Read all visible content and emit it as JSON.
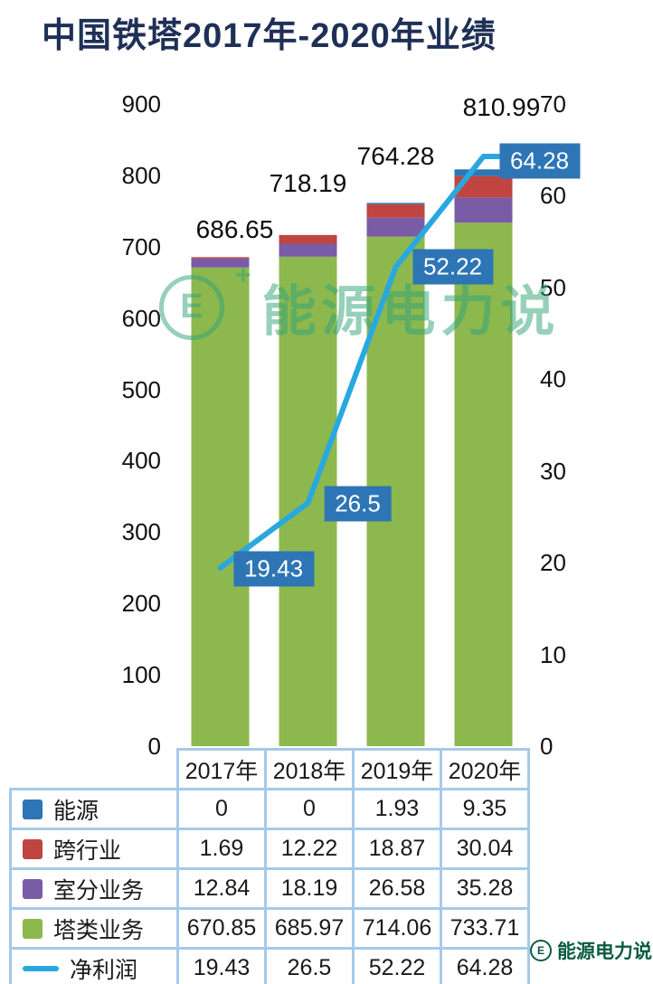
{
  "title": {
    "text": "中国铁塔2017年-2020年业绩",
    "color": "#1f3057"
  },
  "watermark": {
    "logo_letter": "E",
    "sparkle": "+",
    "text": "能源电力说",
    "color": "#2fa37a"
  },
  "brand": {
    "logo_letter": "E",
    "text": "能源电力说",
    "color": "#0b5b41"
  },
  "colors": {
    "accent_blue": "#2e75b6",
    "line_cyan": "#29a8e0",
    "table_border": "#a6c9e8"
  },
  "chart_data": {
    "type": "bar",
    "subtype": "stacked-bar-with-line",
    "title": "中国铁塔2017年-2020年业绩",
    "categories": [
      "2017年",
      "2018年",
      "2019年",
      "2020年"
    ],
    "series": [
      {
        "name": "塔类业务",
        "color": "#8db84e",
        "values": [
          670.85,
          685.97,
          714.06,
          733.71
        ]
      },
      {
        "name": "室分业务",
        "color": "#7a5ba5",
        "values": [
          12.84,
          18.19,
          26.58,
          35.28
        ]
      },
      {
        "name": "跨行业",
        "color": "#c0443f",
        "values": [
          1.69,
          12.22,
          18.87,
          30.04
        ]
      },
      {
        "name": "能源",
        "color": "#2e75b6",
        "values": [
          0,
          0,
          1.93,
          9.35
        ]
      }
    ],
    "line_series": {
      "name": "净利润",
      "color": "#29a8e0",
      "axis": "right",
      "values": [
        19.43,
        26.5,
        52.22,
        64.28
      ],
      "labels": [
        "19.43",
        "26.5",
        "52.22",
        "64.28"
      ]
    },
    "total_labels": [
      "686.65",
      "718.19",
      "764.28",
      "810.99"
    ],
    "left_axis": {
      "min": 0,
      "max": 900,
      "step": 100
    },
    "right_axis": {
      "min": 0,
      "max": 70,
      "step": 10
    },
    "grid": false,
    "legend_position": "table-bottom"
  },
  "table": {
    "year_headers": [
      "2017年",
      "2018年",
      "2019年",
      "2020年"
    ],
    "rows": [
      {
        "label": "能源",
        "marker_color": "#2e75b6",
        "marker_type": "box",
        "values": [
          "0",
          "0",
          "1.93",
          "9.35"
        ]
      },
      {
        "label": "跨行业",
        "marker_color": "#c0443f",
        "marker_type": "box",
        "values": [
          "1.69",
          "12.22",
          "18.87",
          "30.04"
        ]
      },
      {
        "label": "室分业务",
        "marker_color": "#7a5ba5",
        "marker_type": "box",
        "values": [
          "12.84",
          "18.19",
          "26.58",
          "35.28"
        ]
      },
      {
        "label": "塔类业务",
        "marker_color": "#8db84e",
        "marker_type": "box",
        "values": [
          "670.85",
          "685.97",
          "714.06",
          "733.71"
        ]
      },
      {
        "label": "净利润",
        "marker_color": "#29a8e0",
        "marker_type": "line",
        "values": [
          "19.43",
          "26.5",
          "52.22",
          "64.28"
        ]
      }
    ]
  }
}
